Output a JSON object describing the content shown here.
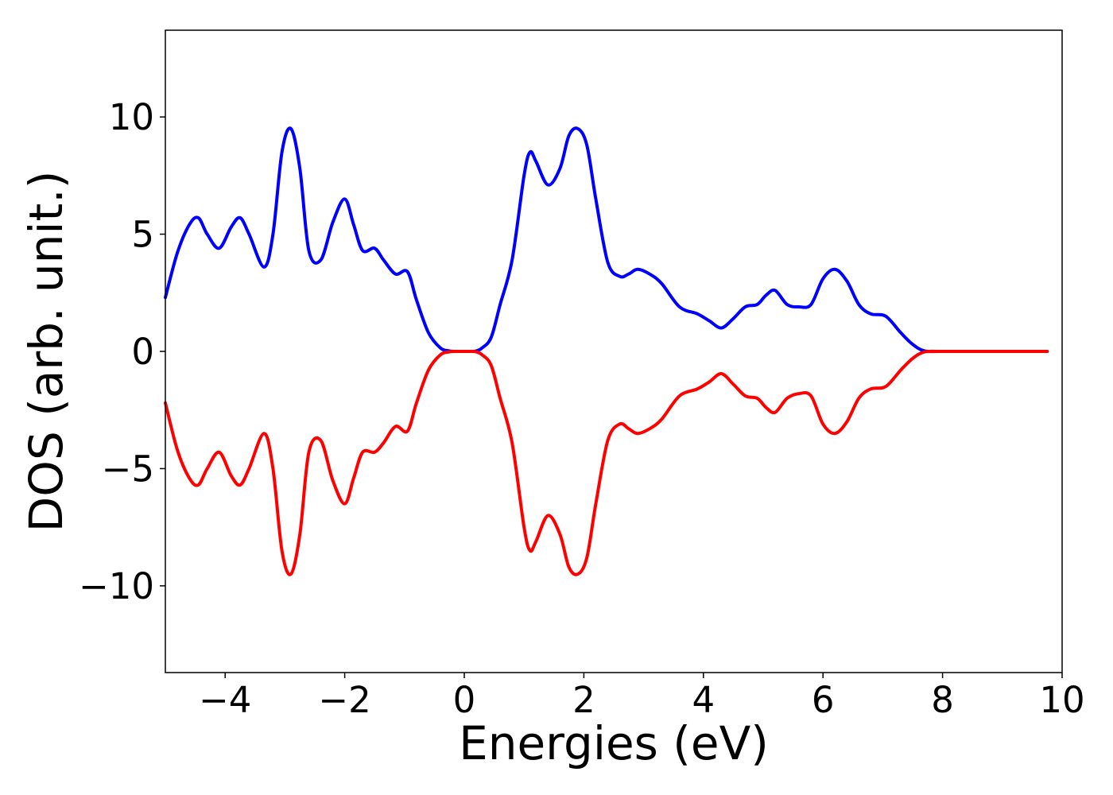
{
  "chart_data": {
    "type": "line",
    "title": "",
    "xlabel": "Energies (eV)",
    "ylabel": "DOS (arb. unit.)",
    "xlim": [
      -5,
      10
    ],
    "ylim": [
      -13.7,
      13.7
    ],
    "xticks": [
      -4,
      -2,
      0,
      2,
      4,
      6,
      8,
      10
    ],
    "yticks": [
      -10,
      -5,
      0,
      5,
      10
    ],
    "xtick_labels": [
      "−4",
      "−2",
      "0",
      "2",
      "4",
      "6",
      "8",
      "10"
    ],
    "ytick_labels": [
      "−10",
      "−5",
      "0",
      "5",
      "10"
    ],
    "grid": false,
    "legend": false,
    "series": [
      {
        "color": "#0000ff",
        "x": [
          -5.0,
          -4.8,
          -4.6,
          -4.45,
          -4.3,
          -4.1,
          -3.9,
          -3.75,
          -3.6,
          -3.35,
          -3.2,
          -3.05,
          -2.9,
          -2.75,
          -2.6,
          -2.4,
          -2.2,
          -2.0,
          -1.85,
          -1.7,
          -1.5,
          -1.35,
          -1.15,
          -0.95,
          -0.8,
          -0.6,
          -0.4,
          -0.25,
          -0.1,
          0.0,
          0.1,
          0.2,
          0.3,
          0.45,
          0.6,
          0.8,
          1.0,
          1.1,
          1.2,
          1.4,
          1.6,
          1.75,
          1.9,
          2.05,
          2.2,
          2.4,
          2.6,
          2.75,
          2.9,
          3.1,
          3.3,
          3.6,
          3.9,
          4.1,
          4.3,
          4.5,
          4.7,
          4.9,
          5.05,
          5.2,
          5.4,
          5.6,
          5.8,
          6.0,
          6.2,
          6.4,
          6.6,
          6.8,
          7.05,
          7.3,
          7.5,
          7.7,
          8.0,
          9.0,
          9.75
        ],
        "y": [
          2.3,
          4.2,
          5.4,
          5.7,
          5.0,
          4.4,
          5.3,
          5.7,
          5.0,
          3.6,
          5.0,
          8.5,
          9.5,
          7.8,
          4.3,
          3.9,
          5.5,
          6.5,
          5.4,
          4.3,
          4.4,
          3.9,
          3.3,
          3.4,
          2.2,
          0.8,
          0.15,
          0.02,
          0.0,
          0.0,
          0.0,
          0.02,
          0.15,
          0.6,
          2.0,
          3.9,
          7.5,
          8.5,
          8.1,
          7.1,
          7.8,
          9.2,
          9.5,
          8.8,
          6.5,
          3.8,
          3.2,
          3.3,
          3.5,
          3.3,
          2.9,
          1.9,
          1.6,
          1.3,
          1.0,
          1.4,
          1.9,
          2.0,
          2.4,
          2.6,
          2.0,
          1.9,
          2.0,
          3.1,
          3.5,
          3.0,
          2.0,
          1.6,
          1.5,
          0.8,
          0.3,
          0.02,
          0.0,
          0.0,
          0.0
        ]
      },
      {
        "color": "#ff0000",
        "x": [
          -5.0,
          -4.8,
          -4.6,
          -4.45,
          -4.3,
          -4.1,
          -3.9,
          -3.75,
          -3.6,
          -3.35,
          -3.2,
          -3.05,
          -2.9,
          -2.75,
          -2.6,
          -2.4,
          -2.2,
          -2.0,
          -1.85,
          -1.7,
          -1.5,
          -1.35,
          -1.15,
          -0.95,
          -0.8,
          -0.6,
          -0.4,
          -0.25,
          -0.1,
          0.0,
          0.1,
          0.2,
          0.3,
          0.45,
          0.6,
          0.8,
          1.0,
          1.1,
          1.2,
          1.4,
          1.6,
          1.75,
          1.9,
          2.05,
          2.2,
          2.4,
          2.6,
          2.75,
          2.9,
          3.1,
          3.3,
          3.6,
          3.9,
          4.1,
          4.3,
          4.5,
          4.7,
          4.9,
          5.05,
          5.2,
          5.4,
          5.6,
          5.8,
          6.0,
          6.2,
          6.4,
          6.6,
          6.8,
          7.05,
          7.3,
          7.5,
          7.7,
          8.0,
          9.0,
          9.75
        ],
        "y": [
          -2.2,
          -4.2,
          -5.4,
          -5.7,
          -5.0,
          -4.3,
          -5.3,
          -5.7,
          -5.0,
          -3.5,
          -5.0,
          -8.5,
          -9.5,
          -7.8,
          -4.3,
          -3.8,
          -5.5,
          -6.5,
          -5.4,
          -4.3,
          -4.3,
          -3.9,
          -3.2,
          -3.4,
          -2.2,
          -0.8,
          -0.15,
          -0.02,
          0.0,
          0.0,
          0.0,
          -0.02,
          -0.15,
          -0.6,
          -2.0,
          -3.9,
          -7.5,
          -8.5,
          -8.1,
          -7.0,
          -7.8,
          -9.2,
          -9.5,
          -8.8,
          -6.5,
          -3.8,
          -3.1,
          -3.3,
          -3.5,
          -3.3,
          -2.9,
          -1.9,
          -1.6,
          -1.3,
          -0.95,
          -1.4,
          -1.9,
          -2.0,
          -2.4,
          -2.6,
          -2.0,
          -1.8,
          -1.9,
          -3.1,
          -3.5,
          -3.0,
          -2.0,
          -1.6,
          -1.5,
          -0.8,
          -0.3,
          -0.02,
          0.0,
          0.0,
          0.0
        ]
      }
    ]
  }
}
